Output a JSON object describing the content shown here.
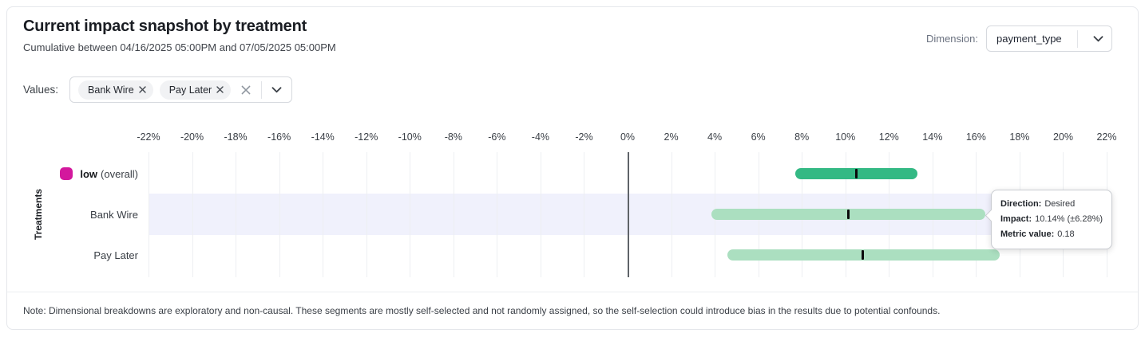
{
  "header": {
    "title": "Current impact snapshot by treatment",
    "subtitle": "Cumulative between 04/16/2025 05:00PM and 07/05/2025 05:00PM",
    "dimension_label": "Dimension:",
    "dimension_value": "payment_type"
  },
  "filters": {
    "values_label": "Values:",
    "chips": [
      {
        "label": "Bank Wire"
      },
      {
        "label": "Pay Later"
      }
    ]
  },
  "chart_data": {
    "type": "interval_bar",
    "y_axis_label": "Treatments",
    "x_unit": "%",
    "xlim": [
      -22,
      22
    ],
    "grid": true,
    "zero_line": 0,
    "ticks": [
      {
        "value": -22,
        "label": "-22%"
      },
      {
        "value": -20,
        "label": "-20%"
      },
      {
        "value": -18,
        "label": "-18%"
      },
      {
        "value": -16,
        "label": "-16%"
      },
      {
        "value": -14,
        "label": "-14%"
      },
      {
        "value": -12,
        "label": "-12%"
      },
      {
        "value": -10,
        "label": "-10%"
      },
      {
        "value": -8,
        "label": "-8%"
      },
      {
        "value": -6,
        "label": "-6%"
      },
      {
        "value": -4,
        "label": "-4%"
      },
      {
        "value": -2,
        "label": "-2%"
      },
      {
        "value": 0,
        "label": "0%"
      },
      {
        "value": 2,
        "label": "2%"
      },
      {
        "value": 4,
        "label": "4%"
      },
      {
        "value": 6,
        "label": "6%"
      },
      {
        "value": 8,
        "label": "8%"
      },
      {
        "value": 10,
        "label": "10%"
      },
      {
        "value": 12,
        "label": "12%"
      },
      {
        "value": 14,
        "label": "14%"
      },
      {
        "value": 16,
        "label": "16%"
      },
      {
        "value": 18,
        "label": "18%"
      },
      {
        "value": 20,
        "label": "20%"
      },
      {
        "value": 22,
        "label": "22%"
      }
    ],
    "rows": [
      {
        "label": "low",
        "suffix": "(overall)",
        "swatch_color": "#d3189d",
        "bar_color": "#34b984",
        "ci_low": 7.7,
        "ci_high": 13.3,
        "point": 10.5,
        "highlighted": false
      },
      {
        "label": "Bank Wire",
        "bar_color": "#abdfc0",
        "ci_low": 3.86,
        "ci_high": 16.42,
        "point": 10.14,
        "highlighted": true
      },
      {
        "label": "Pay Later",
        "bar_color": "#abdfc0",
        "ci_low": 4.6,
        "ci_high": 17.1,
        "point": 10.8,
        "highlighted": false
      }
    ]
  },
  "colors": {
    "row_highlight": "#f0f1fc",
    "overall_bar": "#34b984",
    "segment_bar": "#abdfc0",
    "legend_swatch": "#d3189d"
  },
  "tooltip": {
    "rows": [
      {
        "label": "Direction:",
        "value": "Desired"
      },
      {
        "label": "Impact:",
        "value": "10.14% (±6.28%)"
      },
      {
        "label": "Metric value:",
        "value": "0.18"
      }
    ]
  },
  "note": "Note: Dimensional breakdowns are exploratory and non-causal. These segments are mostly self-selected and not randomly assigned, so the self-selection could introduce bias in the results due to potential confounds."
}
